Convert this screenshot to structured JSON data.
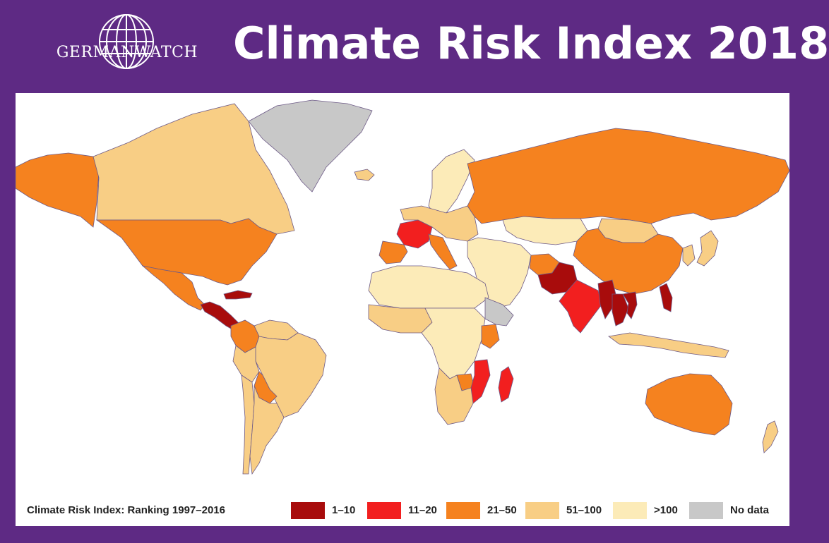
{
  "header": {
    "logo_text": "GERMANWATCH",
    "title": "Climate Risk Index 2018"
  },
  "legend": {
    "title": "Climate Risk Index: Ranking 1997–2016",
    "items": [
      {
        "label": "1–10",
        "color": "#a80c0c"
      },
      {
        "label": "11–20",
        "color": "#f21f1f"
      },
      {
        "label": "21–50",
        "color": "#f5821f"
      },
      {
        "label": "51–100",
        "color": "#f8ce85"
      },
      {
        "label": ">100",
        "color": "#fcebb8"
      },
      {
        "label": "No data",
        "color": "#c8c8c8"
      }
    ]
  },
  "colors": {
    "frame": "#5e2a84",
    "map_background": "#ffffff",
    "border": "#6d5a87"
  },
  "regions": [
    {
      "name": "Alaska",
      "category": "21–50"
    },
    {
      "name": "Canada",
      "category": "51–100"
    },
    {
      "name": "Greenland",
      "category": "No data"
    },
    {
      "name": "Iceland",
      "category": "51–100"
    },
    {
      "name": "USA",
      "category": "21–50"
    },
    {
      "name": "Mexico",
      "category": "21–50"
    },
    {
      "name": "Central America",
      "category": "1–10"
    },
    {
      "name": "Caribbean",
      "category": "1–10"
    },
    {
      "name": "Colombia",
      "category": "21–50"
    },
    {
      "name": "Venezuela",
      "category": "51–100"
    },
    {
      "name": "Brazil",
      "category": "51–100"
    },
    {
      "name": "Peru",
      "category": "51–100"
    },
    {
      "name": "Bolivia",
      "category": "21–50"
    },
    {
      "name": "Argentina",
      "category": "51–100"
    },
    {
      "name": "Chile",
      "category": "51–100"
    },
    {
      "name": "Scandinavia",
      "category": ">100"
    },
    {
      "name": "Western Europe",
      "category": "51–100"
    },
    {
      "name": "France",
      "category": "11–20"
    },
    {
      "name": "Spain",
      "category": "21–50"
    },
    {
      "name": "Italy",
      "category": "21–50"
    },
    {
      "name": "Russia",
      "category": "21–50"
    },
    {
      "name": "Kazakhstan",
      "category": ">100"
    },
    {
      "name": "Mongolia",
      "category": "51–100"
    },
    {
      "name": "China",
      "category": "21–50"
    },
    {
      "name": "Middle East",
      "category": ">100"
    },
    {
      "name": "Afghanistan",
      "category": "21–50"
    },
    {
      "name": "Pakistan",
      "category": "1–10"
    },
    {
      "name": "India",
      "category": "11–20"
    },
    {
      "name": "Myanmar",
      "category": "1–10"
    },
    {
      "name": "Thailand",
      "category": "1–10"
    },
    {
      "name": "Vietnam",
      "category": "1–10"
    },
    {
      "name": "Philippines",
      "category": "1–10"
    },
    {
      "name": "Japan",
      "category": "51–100"
    },
    {
      "name": "Korea",
      "category": "51–100"
    },
    {
      "name": "Indonesia",
      "category": "51–100"
    },
    {
      "name": "North Africa",
      "category": ">100"
    },
    {
      "name": "West Africa",
      "category": "51–100"
    },
    {
      "name": "Central Africa",
      "category": ">100"
    },
    {
      "name": "Horn of Africa",
      "category": "No data"
    },
    {
      "name": "Kenya",
      "category": "21–50"
    },
    {
      "name": "Southern Africa",
      "category": "51–100"
    },
    {
      "name": "Zimbabwe",
      "category": "21–50"
    },
    {
      "name": "Mozambique",
      "category": "11–20"
    },
    {
      "name": "Madagascar",
      "category": "11–20"
    },
    {
      "name": "Australia",
      "category": "21–50"
    },
    {
      "name": "New Zealand",
      "category": "51–100"
    }
  ]
}
